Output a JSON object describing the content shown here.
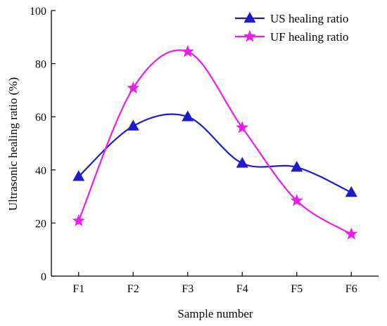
{
  "chart_data": {
    "type": "line",
    "categories": [
      "F1",
      "F2",
      "F3",
      "F4",
      "F5",
      "F6"
    ],
    "series": [
      {
        "name": "US healing ratio",
        "values": [
          37.5,
          56.5,
          60.0,
          42.5,
          41.0,
          31.5
        ],
        "color": "#1c1ccc",
        "marker": "triangle"
      },
      {
        "name": "UF healing ratio",
        "values": [
          20.8,
          70.8,
          84.5,
          55.9,
          28.4,
          15.8
        ],
        "color": "#ee1bee",
        "marker": "star"
      }
    ],
    "title": "",
    "xlabel": "Sample number",
    "ylabel": "Ultrasonic healing ratio (%)",
    "ylim": [
      0,
      100
    ],
    "yticks": [
      "0",
      "20",
      "40",
      "60",
      "80",
      "100"
    ],
    "grid": false,
    "legend_position": "top-right"
  }
}
